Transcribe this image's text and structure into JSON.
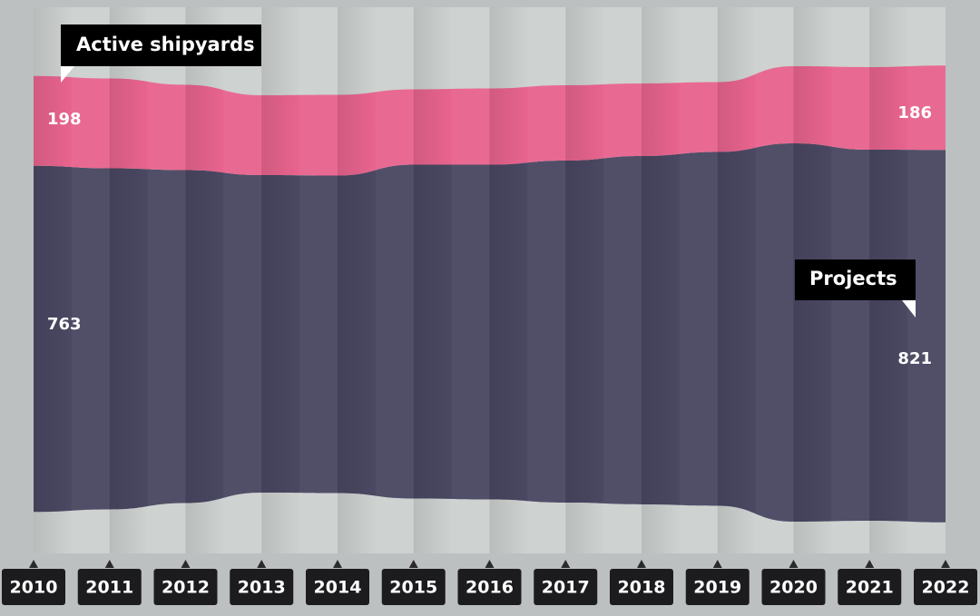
{
  "chart_data": {
    "type": "streamgraph",
    "categories": [
      "2010",
      "2011",
      "2012",
      "2013",
      "2014",
      "2015",
      "2016",
      "2017",
      "2018",
      "2019",
      "2020",
      "2021",
      "2022"
    ],
    "series": [
      {
        "name": "Projects",
        "color": "#4a4862",
        "values": [
          763,
          752,
          734,
          700,
          700,
          736,
          738,
          754,
          768,
          780,
          834,
          818,
          821
        ]
      },
      {
        "name": "Active shipyards",
        "color": "#e8648e",
        "values": [
          198,
          198,
          188,
          176,
          178,
          166,
          168,
          166,
          160,
          154,
          170,
          182,
          186
        ]
      }
    ]
  }
}
